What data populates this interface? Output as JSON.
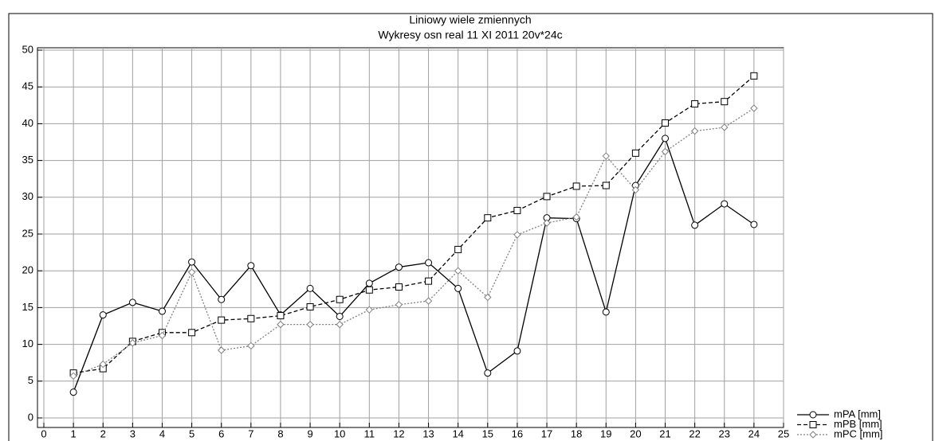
{
  "chart_data": {
    "type": "line",
    "title": "Liniowy   wiele zmiennych",
    "subtitle": "Wykresy osn real 11 XI 2011 20v*24c",
    "x": [
      1,
      2,
      3,
      4,
      5,
      6,
      7,
      8,
      9,
      10,
      11,
      12,
      13,
      14,
      15,
      16,
      17,
      18,
      19,
      20,
      21,
      22,
      23,
      24
    ],
    "series": [
      {
        "name": "mPA [mm]",
        "color": "#000000",
        "style": "solid",
        "marker": "circle",
        "values": [
          3.5,
          14,
          15.7,
          14.5,
          21.2,
          16.1,
          20.7,
          14,
          17.6,
          13.8,
          18.3,
          20.5,
          21.1,
          17.6,
          6.1,
          9.1,
          27.2,
          27.1,
          14.4,
          31.6,
          38,
          26.2,
          29.1,
          26.3
        ]
      },
      {
        "name": "mPB [mm]",
        "color": "#000000",
        "style": "dashed",
        "marker": "square",
        "values": [
          6.1,
          6.7,
          10.4,
          11.6,
          11.6,
          13.3,
          13.5,
          13.9,
          15.1,
          16.1,
          17.4,
          17.8,
          18.6,
          22.9,
          27.2,
          28.2,
          30.1,
          31.5,
          31.6,
          36,
          40.1,
          42.7,
          43,
          46.5
        ]
      },
      {
        "name": "mPC [mm]",
        "color": "#808080",
        "style": "dotted",
        "marker": "diamond",
        "values": [
          5.7,
          7.3,
          10.2,
          11.2,
          19.8,
          9.2,
          9.8,
          12.7,
          12.7,
          12.7,
          14.7,
          15.4,
          15.9,
          20,
          16.4,
          24.9,
          26.5,
          27.3,
          35.6,
          31,
          36.2,
          39,
          39.5,
          42.1
        ]
      }
    ],
    "xlim": [
      0,
      25
    ],
    "xticks": [
      0,
      1,
      2,
      3,
      4,
      5,
      6,
      7,
      8,
      9,
      10,
      11,
      12,
      13,
      14,
      15,
      16,
      17,
      18,
      19,
      20,
      21,
      22,
      23,
      24,
      25
    ],
    "ylim": [
      0,
      50
    ],
    "yticks": [
      0,
      5,
      10,
      15,
      20,
      25,
      30,
      35,
      40,
      45,
      50
    ],
    "grid": true
  }
}
